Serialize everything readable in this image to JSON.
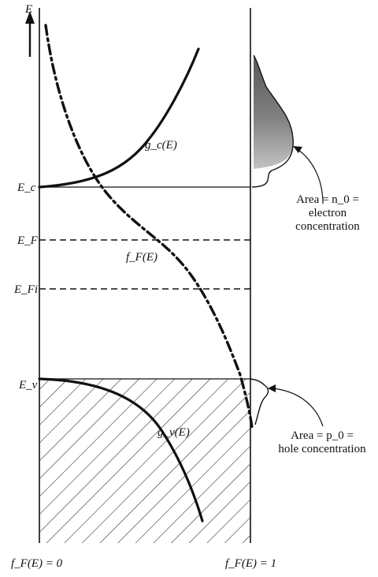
{
  "axis": {
    "energy": "E",
    "left_bottom": "f_F(E) = 0",
    "right_bottom": "f_F(E) = 1"
  },
  "levels": {
    "ec": "E_c",
    "ef": "E_F",
    "efi": "E_Fi",
    "ev": "E_v"
  },
  "curves": {
    "gc": "g_c(E)",
    "gv": "g_v(E)",
    "ff": "f_F(E)"
  },
  "annotations": {
    "electron": {
      "line1": "Area = n_0 =",
      "line2": "electron",
      "line3": "concentration"
    },
    "hole": {
      "line1": "Area = p_0 =",
      "line2": "hole concentration"
    }
  },
  "colors": {
    "ink": "#111111",
    "shade": "#6f6f6f"
  }
}
